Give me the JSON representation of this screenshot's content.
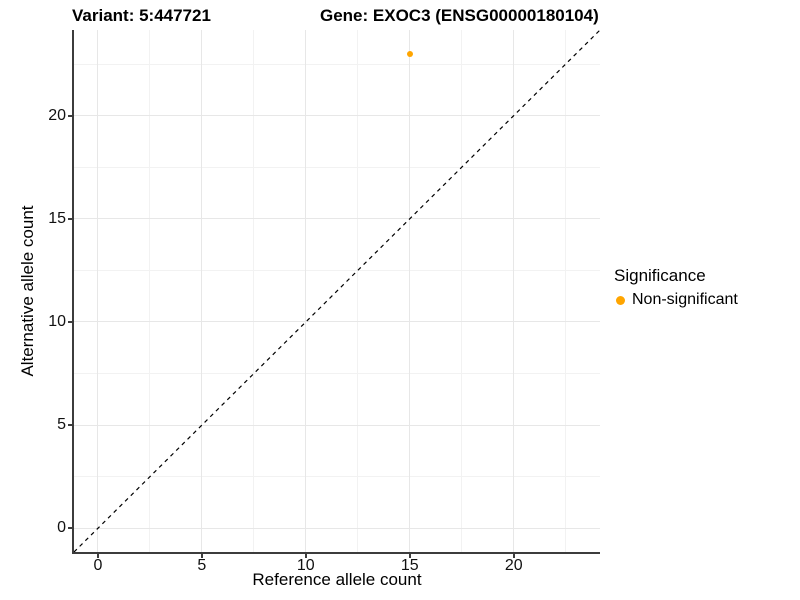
{
  "titles": {
    "variant": "Variant: 5:447721",
    "gene": "Gene: EXOC3 (ENSG00000180104)"
  },
  "legend": {
    "title": "Significance",
    "items": [
      {
        "label": "Non-significant",
        "color": "#FFA500",
        "marker": "dot"
      }
    ]
  },
  "colors": {
    "point_orange": "#FFA500",
    "axis_line": "#3c3c3c",
    "reference_line": "#000000"
  },
  "chart_data": {
    "type": "scatter",
    "titles": {
      "left": "Variant: 5:447721",
      "right": "Gene: EXOC3 (ENSG00000180104)"
    },
    "xlabel": "Reference allele count",
    "ylabel": "Alternative allele count",
    "xlim": [
      -1.15,
      24.15
    ],
    "ylim": [
      -1.15,
      24.15
    ],
    "x_ticks": [
      0,
      5,
      10,
      15,
      20
    ],
    "y_ticks": [
      0,
      5,
      10,
      15,
      20
    ],
    "x_minor_ticks": [
      2.5,
      7.5,
      12.5,
      17.5,
      22.5
    ],
    "y_minor_ticks": [
      2.5,
      7.5,
      12.5,
      17.5,
      22.5
    ],
    "grid": "major+minor",
    "legend_position": "right",
    "points": [
      {
        "x": 15,
        "y": 23,
        "series": "Non-significant",
        "color": "#FFA500"
      }
    ],
    "reference_line": {
      "type": "identity",
      "slope": 1,
      "intercept": 0,
      "style": "dashed",
      "color": "#000000"
    }
  }
}
